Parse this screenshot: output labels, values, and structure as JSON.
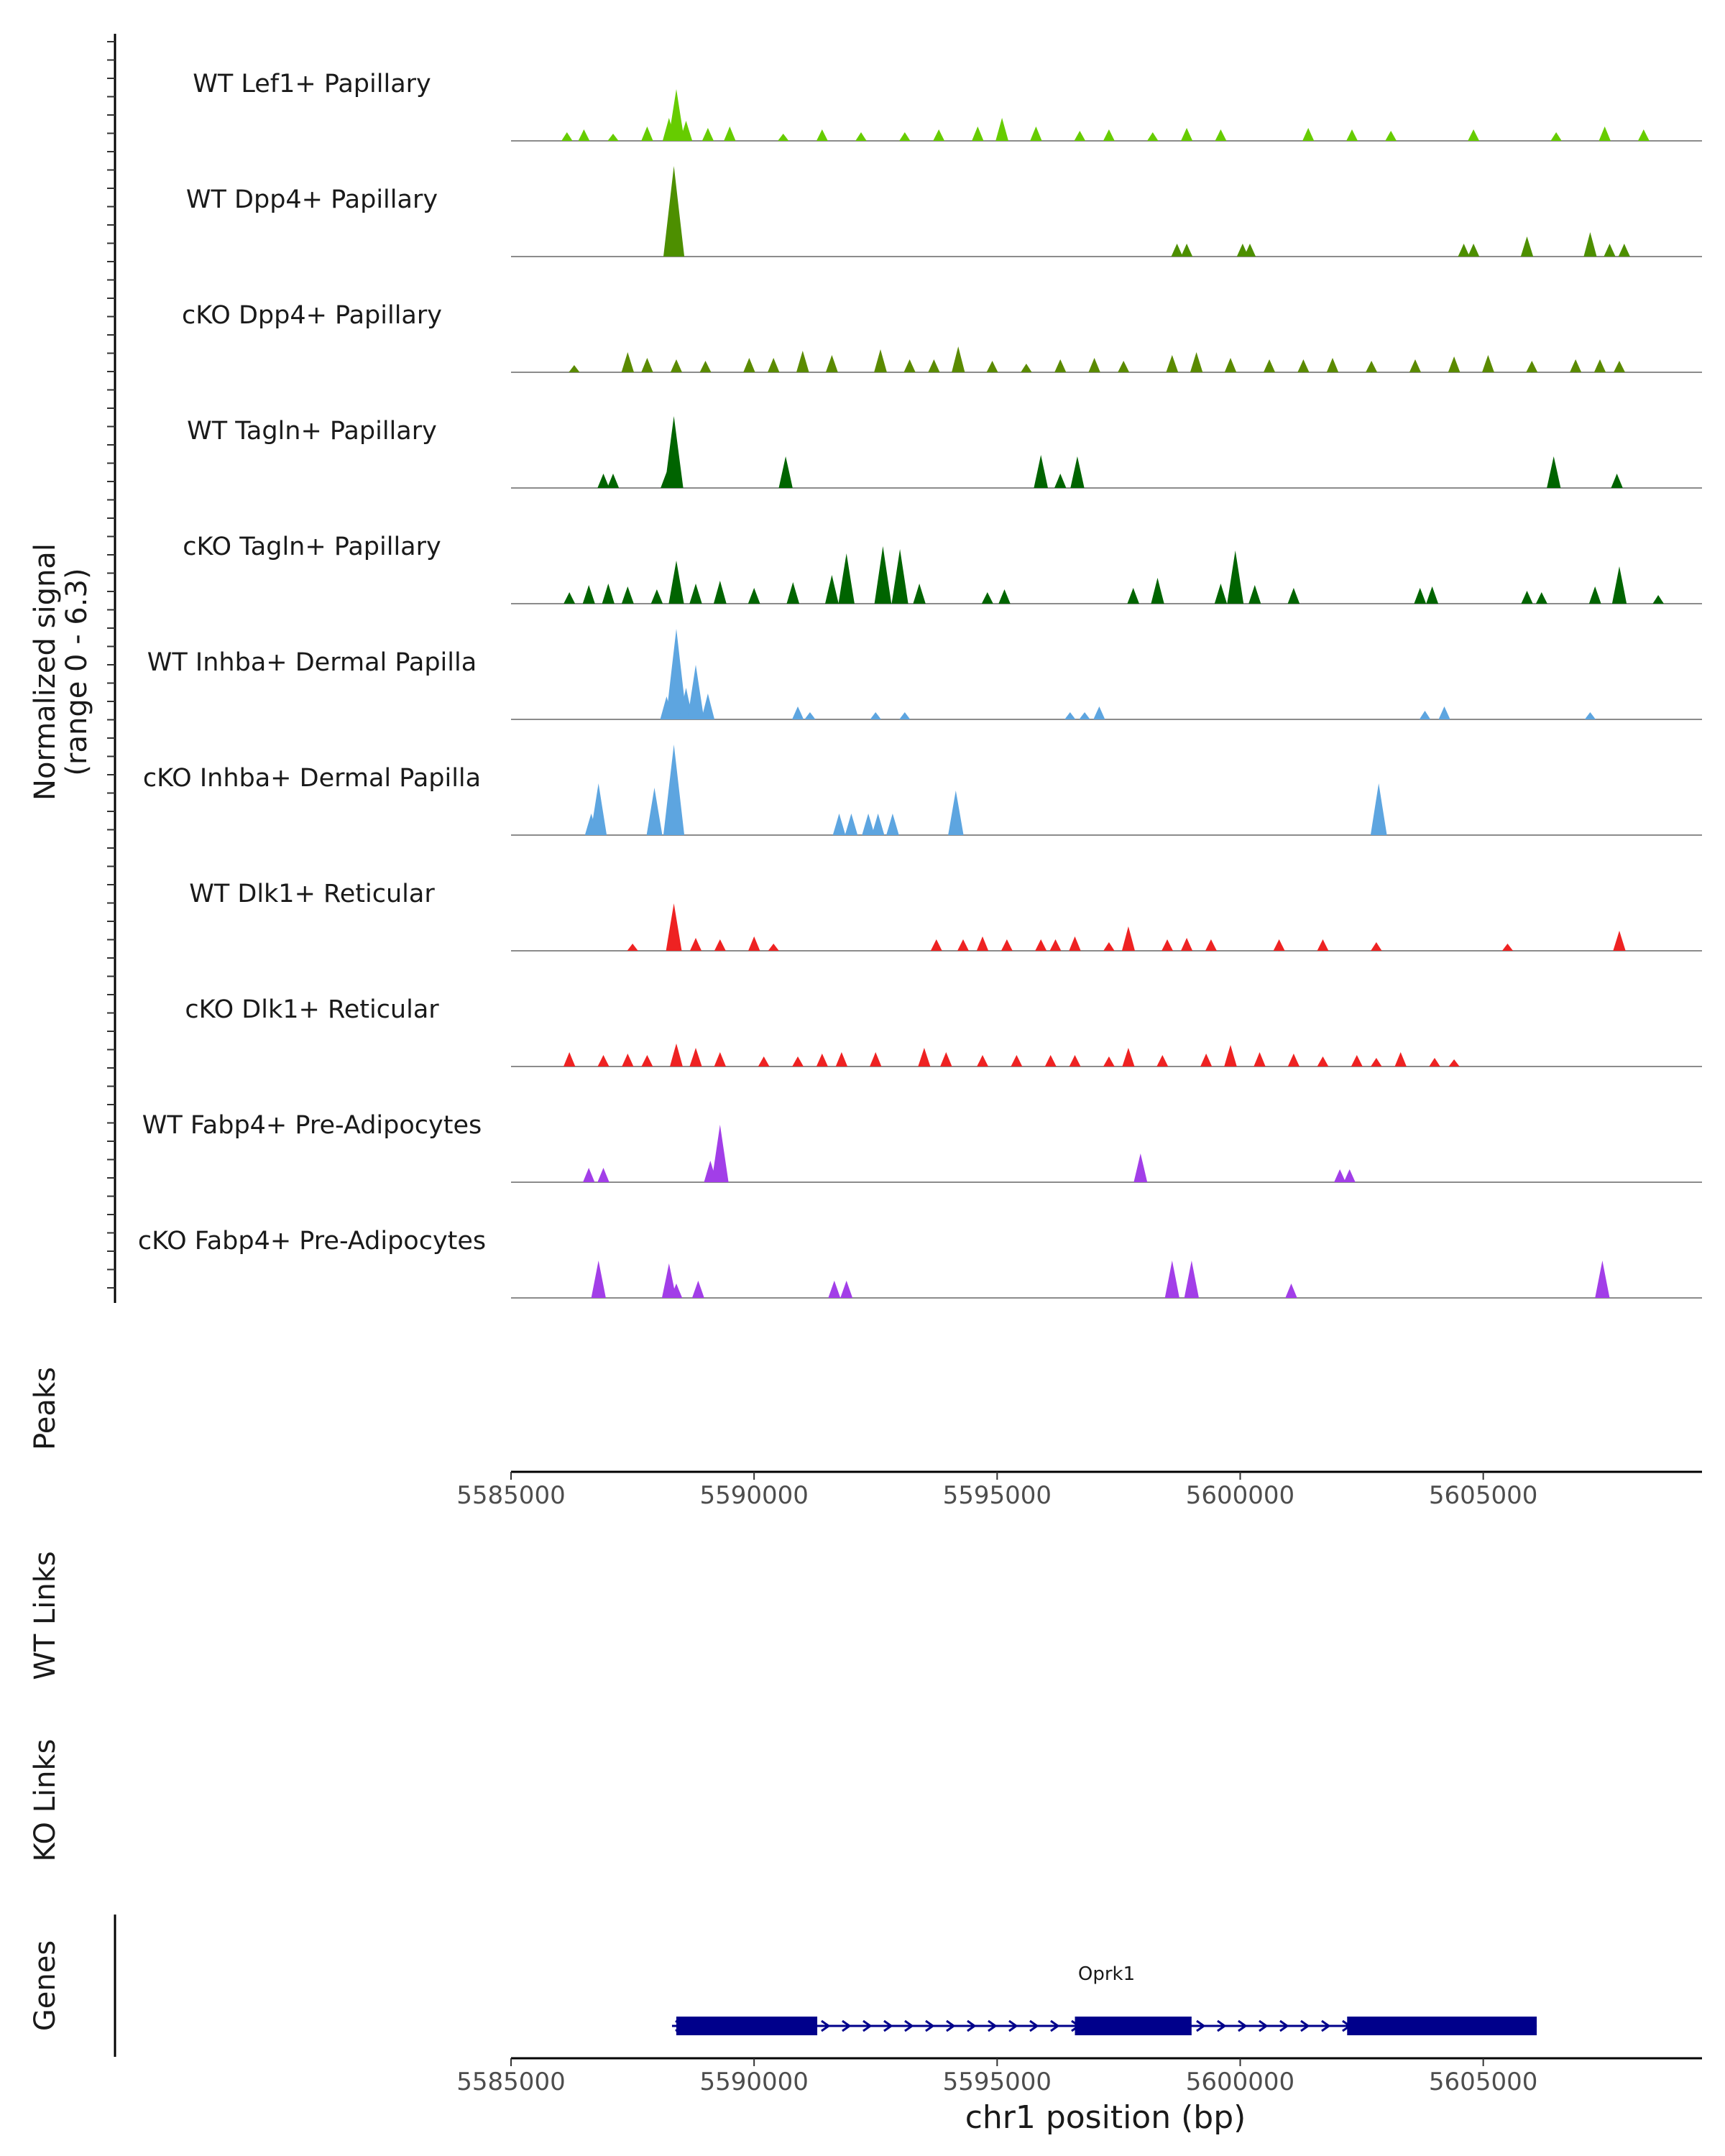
{
  "chart_data": {
    "type": "coverage",
    "chromosome": "chr1",
    "xlim": [
      5585000,
      5609500
    ],
    "ylim": [
      0,
      6.3
    ],
    "y_axis_label": "Normalized signal",
    "y_range_label": "(range 0 - 6.3)",
    "x_axis_label": "chr1 position (bp)",
    "x_ticks": [
      5585000,
      5590000,
      5595000,
      5600000,
      5605000
    ],
    "x_tick_labels": [
      "5585000",
      "5590000",
      "5595000",
      "5600000",
      "5605000"
    ],
    "tracks": [
      {
        "label": "WT Lef1+ Papillary",
        "color": "#66cc00",
        "peaks": [
          [
            5586150,
            0.6
          ],
          [
            5586500,
            0.8
          ],
          [
            5587100,
            0.5
          ],
          [
            5587800,
            1.0
          ],
          [
            5588250,
            1.6
          ],
          [
            5588400,
            3.6
          ],
          [
            5588600,
            1.4
          ],
          [
            5589050,
            0.9
          ],
          [
            5589500,
            1.0
          ],
          [
            5590600,
            0.5
          ],
          [
            5591400,
            0.8
          ],
          [
            5592200,
            0.6
          ],
          [
            5593100,
            0.6
          ],
          [
            5593800,
            0.8
          ],
          [
            5594600,
            1.0
          ],
          [
            5595100,
            1.6
          ],
          [
            5595800,
            1.0
          ],
          [
            5596700,
            0.7
          ],
          [
            5597300,
            0.8
          ],
          [
            5598200,
            0.6
          ],
          [
            5598900,
            0.9
          ],
          [
            5599600,
            0.8
          ],
          [
            5601400,
            0.9
          ],
          [
            5602300,
            0.8
          ],
          [
            5603100,
            0.7
          ],
          [
            5604800,
            0.8
          ],
          [
            5606500,
            0.6
          ],
          [
            5607500,
            1.0
          ],
          [
            5608300,
            0.8
          ]
        ]
      },
      {
        "label": "WT Dpp4+ Papillary",
        "color": "#4d8f00",
        "peaks": [
          [
            5588350,
            6.3
          ],
          [
            5598700,
            0.9
          ],
          [
            5598900,
            0.9
          ],
          [
            5600050,
            0.9
          ],
          [
            5600200,
            0.9
          ],
          [
            5604600,
            0.9
          ],
          [
            5604800,
            0.9
          ],
          [
            5605900,
            1.4
          ],
          [
            5607200,
            1.7
          ],
          [
            5607600,
            0.9
          ],
          [
            5607900,
            0.9
          ]
        ]
      },
      {
        "label": "cKO Dpp4+ Papillary",
        "color": "#5a8a00",
        "peaks": [
          [
            5586300,
            0.5
          ],
          [
            5587400,
            1.4
          ],
          [
            5587800,
            1.0
          ],
          [
            5588400,
            0.9
          ],
          [
            5589000,
            0.8
          ],
          [
            5589900,
            1.0
          ],
          [
            5590400,
            1.0
          ],
          [
            5591000,
            1.5
          ],
          [
            5591600,
            1.2
          ],
          [
            5592600,
            1.6
          ],
          [
            5593200,
            0.9
          ],
          [
            5593700,
            0.9
          ],
          [
            5594200,
            1.8
          ],
          [
            5594900,
            0.8
          ],
          [
            5595600,
            0.6
          ],
          [
            5596300,
            0.9
          ],
          [
            5597000,
            1.0
          ],
          [
            5597600,
            0.8
          ],
          [
            5598600,
            1.2
          ],
          [
            5599100,
            1.4
          ],
          [
            5599800,
            1.0
          ],
          [
            5600600,
            0.9
          ],
          [
            5601300,
            0.9
          ],
          [
            5601900,
            1.0
          ],
          [
            5602700,
            0.8
          ],
          [
            5603600,
            0.9
          ],
          [
            5604400,
            1.1
          ],
          [
            5605100,
            1.2
          ],
          [
            5606000,
            0.8
          ],
          [
            5606900,
            0.9
          ],
          [
            5607400,
            0.9
          ],
          [
            5607800,
            0.8
          ]
        ]
      },
      {
        "label": "WT Tagln+ Papillary",
        "color": "#006400",
        "peaks": [
          [
            5586900,
            1.0
          ],
          [
            5587100,
            1.0
          ],
          [
            5588200,
            1.1
          ],
          [
            5588350,
            5.0
          ],
          [
            5590650,
            2.2
          ],
          [
            5595900,
            2.3
          ],
          [
            5596300,
            1.0
          ],
          [
            5596650,
            2.2
          ],
          [
            5606450,
            2.2
          ],
          [
            5607750,
            1.0
          ]
        ]
      },
      {
        "label": "cKO Tagln+ Papillary",
        "color": "#006400",
        "peaks": [
          [
            5586200,
            0.8
          ],
          [
            5586600,
            1.3
          ],
          [
            5587000,
            1.4
          ],
          [
            5587400,
            1.2
          ],
          [
            5588000,
            1.0
          ],
          [
            5588400,
            3.0
          ],
          [
            5588800,
            1.4
          ],
          [
            5589300,
            1.6
          ],
          [
            5590000,
            1.1
          ],
          [
            5590800,
            1.5
          ],
          [
            5591600,
            2.0
          ],
          [
            5591900,
            3.5
          ],
          [
            5592650,
            4.0
          ],
          [
            5593000,
            3.8
          ],
          [
            5593400,
            1.4
          ],
          [
            5594800,
            0.8
          ],
          [
            5595150,
            1.0
          ],
          [
            5597800,
            1.1
          ],
          [
            5598300,
            1.8
          ],
          [
            5599600,
            1.4
          ],
          [
            5599900,
            3.7
          ],
          [
            5600300,
            1.3
          ],
          [
            5601100,
            1.1
          ],
          [
            5603700,
            1.1
          ],
          [
            5603950,
            1.2
          ],
          [
            5605900,
            0.9
          ],
          [
            5606200,
            0.8
          ],
          [
            5607300,
            1.2
          ],
          [
            5607800,
            2.6
          ],
          [
            5608600,
            0.6
          ]
        ]
      },
      {
        "label": "WT Inhba+ Dermal Papilla",
        "color": "#5da5e0",
        "peaks": [
          [
            5588200,
            1.6
          ],
          [
            5588400,
            6.3
          ],
          [
            5588600,
            2.2
          ],
          [
            5588800,
            3.8
          ],
          [
            5589050,
            1.8
          ],
          [
            5590900,
            0.9
          ],
          [
            5591150,
            0.5
          ],
          [
            5592500,
            0.5
          ],
          [
            5593100,
            0.5
          ],
          [
            5596500,
            0.5
          ],
          [
            5596800,
            0.5
          ],
          [
            5597100,
            0.9
          ],
          [
            5603800,
            0.6
          ],
          [
            5604200,
            0.9
          ],
          [
            5607200,
            0.5
          ]
        ]
      },
      {
        "label": "cKO Inhba+ Dermal Papilla",
        "color": "#5da5e0",
        "peaks": [
          [
            5586650,
            1.5
          ],
          [
            5586800,
            3.6
          ],
          [
            5587950,
            3.3
          ],
          [
            5588350,
            6.3
          ],
          [
            5591750,
            1.5
          ],
          [
            5592000,
            1.5
          ],
          [
            5592350,
            1.5
          ],
          [
            5592550,
            1.5
          ],
          [
            5592850,
            1.5
          ],
          [
            5594150,
            3.1
          ],
          [
            5602850,
            3.6
          ]
        ]
      },
      {
        "label": "WT Dlk1+ Reticular",
        "color": "#ee2222",
        "peaks": [
          [
            5587500,
            0.5
          ],
          [
            5588350,
            3.3
          ],
          [
            5588800,
            0.9
          ],
          [
            5589300,
            0.8
          ],
          [
            5590000,
            1.0
          ],
          [
            5590400,
            0.5
          ],
          [
            5593750,
            0.8
          ],
          [
            5594300,
            0.8
          ],
          [
            5594700,
            1.0
          ],
          [
            5595200,
            0.8
          ],
          [
            5595900,
            0.8
          ],
          [
            5596200,
            0.8
          ],
          [
            5596600,
            1.0
          ],
          [
            5597700,
            1.7
          ],
          [
            5597300,
            0.6
          ],
          [
            5598500,
            0.8
          ],
          [
            5598900,
            0.9
          ],
          [
            5599400,
            0.8
          ],
          [
            5600800,
            0.8
          ],
          [
            5601700,
            0.8
          ],
          [
            5602800,
            0.6
          ],
          [
            5605500,
            0.5
          ],
          [
            5607800,
            1.4
          ]
        ]
      },
      {
        "label": "cKO Dlk1+ Reticular",
        "color": "#ee2222",
        "peaks": [
          [
            5586200,
            1.0
          ],
          [
            5586900,
            0.8
          ],
          [
            5587400,
            0.9
          ],
          [
            5587800,
            0.8
          ],
          [
            5588400,
            1.6
          ],
          [
            5588800,
            1.3
          ],
          [
            5589300,
            1.0
          ],
          [
            5590200,
            0.7
          ],
          [
            5590900,
            0.7
          ],
          [
            5591400,
            0.9
          ],
          [
            5591800,
            1.0
          ],
          [
            5592500,
            1.0
          ],
          [
            5593500,
            1.3
          ],
          [
            5593950,
            1.0
          ],
          [
            5594700,
            0.8
          ],
          [
            5595400,
            0.8
          ],
          [
            5596100,
            0.8
          ],
          [
            5596600,
            0.8
          ],
          [
            5597300,
            0.7
          ],
          [
            5597700,
            1.3
          ],
          [
            5598400,
            0.8
          ],
          [
            5599300,
            0.9
          ],
          [
            5599800,
            1.5
          ],
          [
            5600400,
            1.0
          ],
          [
            5601100,
            0.9
          ],
          [
            5601700,
            0.7
          ],
          [
            5602400,
            0.8
          ],
          [
            5602800,
            0.6
          ],
          [
            5603300,
            1.0
          ],
          [
            5604000,
            0.6
          ],
          [
            5604400,
            0.5
          ]
        ]
      },
      {
        "label": "WT Fabp4+ Pre-Adipocytes",
        "color": "#a23ee8",
        "peaks": [
          [
            5586600,
            1.0
          ],
          [
            5586900,
            1.0
          ],
          [
            5589100,
            1.5
          ],
          [
            5589300,
            4.0
          ],
          [
            5597950,
            2.0
          ],
          [
            5602050,
            0.9
          ],
          [
            5602250,
            0.9
          ]
        ]
      },
      {
        "label": "cKO Fabp4+ Pre-Adipocytes",
        "color": "#a23ee8",
        "peaks": [
          [
            5586800,
            2.6
          ],
          [
            5588250,
            2.4
          ],
          [
            5588400,
            1.0
          ],
          [
            5588850,
            1.2
          ],
          [
            5591650,
            1.2
          ],
          [
            5591900,
            1.2
          ],
          [
            5598600,
            2.6
          ],
          [
            5599000,
            2.6
          ],
          [
            5601050,
            1.0
          ],
          [
            5607450,
            2.6
          ]
        ]
      }
    ],
    "panels": {
      "peaks": "Peaks",
      "wt_links": "WT Links",
      "ko_links": "KO Links",
      "genes": "Genes"
    },
    "gene": {
      "name": "Oprk1",
      "start": 5588400,
      "end": 5606100,
      "strand": "+",
      "exons": [
        [
          5588400,
          5591300
        ],
        [
          5596600,
          5599000
        ],
        [
          5602200,
          5606100
        ]
      ]
    }
  }
}
